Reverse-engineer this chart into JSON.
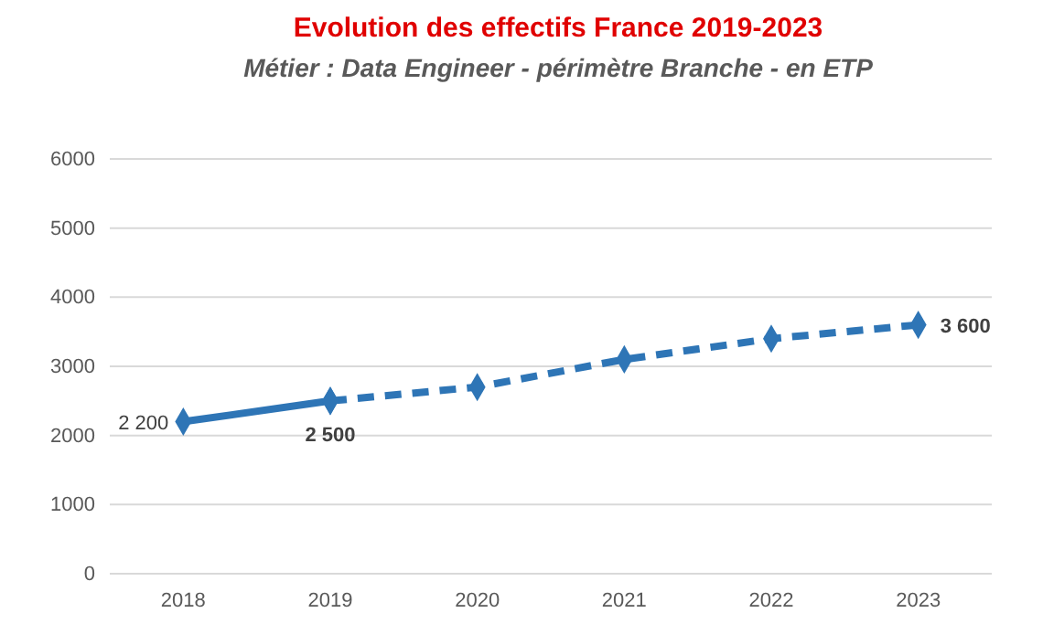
{
  "chart_data": {
    "type": "line",
    "title": "Evolution des effectifs France 2019-2023",
    "subtitle": "Métier : Data Engineer - périmètre Branche - en ETP",
    "categories": [
      "2018",
      "2019",
      "2020",
      "2021",
      "2022",
      "2023"
    ],
    "series": [
      {
        "color": "#2e75b6",
        "line_style": "solid",
        "values": [
          2200,
          2500,
          null,
          null,
          null,
          null
        ],
        "value_labels": [
          "2 200",
          "2 500",
          null,
          null,
          null,
          null
        ]
      },
      {
        "color": "#2e75b6",
        "line_style": "dashed",
        "values": [
          null,
          2500,
          2700,
          3100,
          3400,
          3600
        ],
        "value_labels": [
          null,
          null,
          null,
          null,
          null,
          "3 600"
        ]
      }
    ],
    "ylim": [
      0,
      6000
    ],
    "yticks": [
      0,
      1000,
      2000,
      3000,
      4000,
      5000,
      6000
    ],
    "grid": "y",
    "marker": "diamond"
  }
}
